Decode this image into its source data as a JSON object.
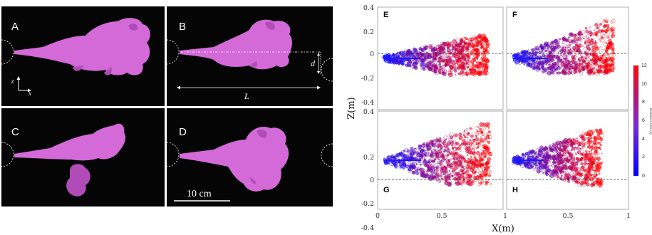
{
  "figure": {
    "photos": [
      {
        "id": "A",
        "label": "A"
      },
      {
        "id": "B",
        "label": "B"
      },
      {
        "id": "C",
        "label": "C"
      },
      {
        "id": "D",
        "label": "D"
      }
    ],
    "axes_glyph": {
      "z": "z",
      "x": "x"
    },
    "annotation_d": "d",
    "annotation_L": "L",
    "scale_bar_label": "10 cm",
    "plume_color": "#d36ad8",
    "panel_background": "#050505"
  },
  "chart_data": [
    {
      "type": "scatter",
      "panel": "E",
      "xlim": [
        0,
        1
      ],
      "ylim": [
        -0.4,
        0.4
      ],
      "dashed_baseline": 0,
      "plume_extent_x": [
        0.05,
        0.88
      ],
      "plume_extent_z": [
        -0.13,
        0.18
      ]
    },
    {
      "type": "scatter",
      "panel": "F",
      "xlim": [
        0,
        1
      ],
      "ylim": [
        -0.4,
        0.4
      ],
      "dashed_baseline": 0,
      "plume_extent_x": [
        0.05,
        0.88
      ],
      "plume_extent_z": [
        -0.12,
        0.3
      ]
    },
    {
      "type": "scatter",
      "panel": "G",
      "xlim": [
        0,
        1
      ],
      "ylim": [
        -0.4,
        0.4
      ],
      "dashed_baseline": 0,
      "plume_extent_x": [
        0.05,
        0.9
      ],
      "plume_extent_z": [
        -0.2,
        0.3
      ]
    },
    {
      "type": "scatter",
      "panel": "H",
      "xlim": [
        0,
        1
      ],
      "ylim": [
        -0.4,
        0.4
      ],
      "dashed_baseline": 0,
      "plume_extent_x": [
        0.05,
        0.78
      ],
      "plume_extent_z": [
        -0.22,
        0.25
      ]
    }
  ],
  "axes": {
    "xlabel": "X(m)",
    "ylabel": "Z(m)",
    "yticks": [
      "0.4",
      "0.2",
      "0",
      "-0.2",
      "-0.4"
    ],
    "xticks": [
      "0",
      "0.5",
      "1"
    ],
    "panel_letters": [
      "E",
      "F",
      "G",
      "H"
    ]
  },
  "colorbar": {
    "title": "Residence time (s)",
    "range": [
      0,
      12
    ],
    "ticks": [
      "12",
      "10",
      "8",
      "6",
      "4",
      "2",
      "0"
    ],
    "colors": [
      "#0000ff",
      "#8a2be2",
      "#c0004a",
      "#ff0000"
    ]
  }
}
